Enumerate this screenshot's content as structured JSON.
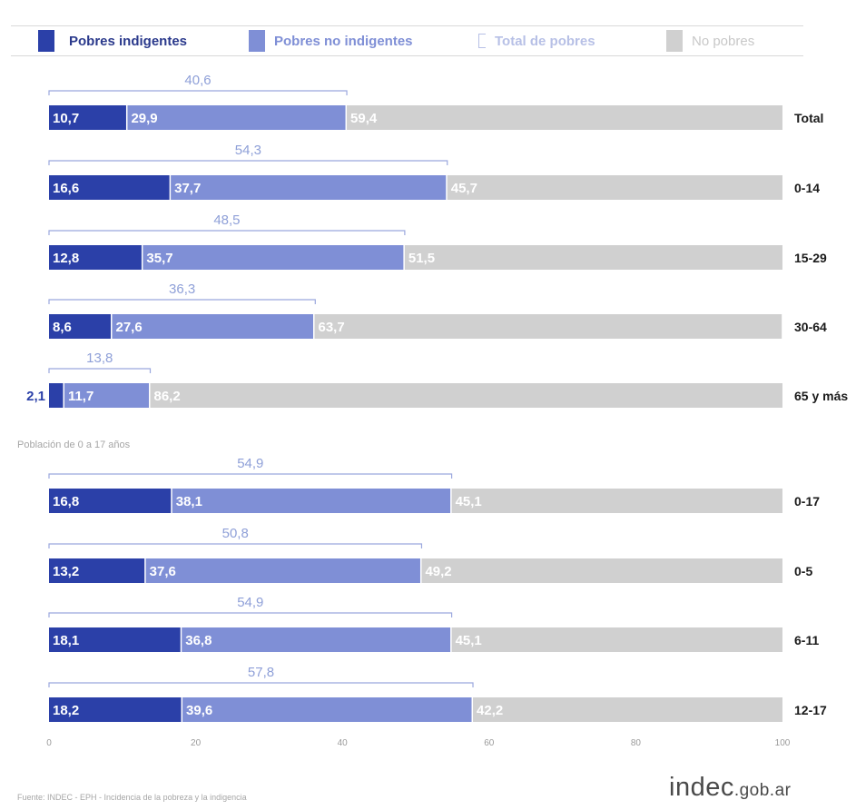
{
  "legend": {
    "indigentes": "Pobres indigentes",
    "no_indigentes": "Pobres no indigentes",
    "total": "Total de pobres",
    "no_pobres": "No pobres"
  },
  "section_note": "Población de 0 a 17 años",
  "source_note": "Fuente: INDEC - EPH - Incidencia de la pobreza y la indigencia",
  "logo": {
    "main": "indec",
    "domain": ".gob.ar"
  },
  "colors": {
    "indigentes": "#2b40a8",
    "no_indigentes": "#7f8fd6",
    "no_pobres": "#d0d0d0",
    "total_label": "#8fa0d8",
    "bracket": "#9ba8de"
  },
  "chart_data": {
    "type": "bar",
    "orientation": "horizontal",
    "stacked": true,
    "xlim": [
      0,
      100
    ],
    "xticks": [
      "0",
      "20",
      "40",
      "60",
      "80",
      "100"
    ],
    "categories": [
      "Total",
      "0-14",
      "15-29",
      "30-64",
      "65 y más",
      "0-17",
      "0-5",
      "6-11",
      "12-17"
    ],
    "series": [
      {
        "name": "Pobres indigentes",
        "values": [
          10.7,
          16.6,
          12.8,
          8.6,
          2.1,
          16.8,
          13.2,
          18.1,
          18.2
        ],
        "labels": [
          "10,7",
          "16,6",
          "12,8",
          "8,6",
          "2,1",
          "16,8",
          "13,2",
          "18,1",
          "18,2"
        ]
      },
      {
        "name": "Pobres no indigentes",
        "values": [
          29.9,
          37.7,
          35.7,
          27.6,
          11.7,
          38.1,
          37.6,
          36.8,
          39.6
        ],
        "labels": [
          "29,9",
          "37,7",
          "35,7",
          "27,6",
          "11,7",
          "38,1",
          "37,6",
          "36,8",
          "39,6"
        ]
      },
      {
        "name": "No pobres",
        "values": [
          59.4,
          45.7,
          51.5,
          63.7,
          86.2,
          45.1,
          49.2,
          45.1,
          42.2
        ],
        "labels": [
          "59,4",
          "45,7",
          "51,5",
          "63,7",
          "86,2",
          "45,1",
          "49,2",
          "45,1",
          "42,2"
        ]
      }
    ],
    "total_pobres": {
      "name": "Total de pobres",
      "values": [
        40.6,
        54.3,
        48.5,
        36.3,
        13.8,
        54.9,
        50.8,
        54.9,
        57.8
      ],
      "labels": [
        "40,6",
        "54,3",
        "48,5",
        "36,3",
        "13,8",
        "54,9",
        "50,8",
        "54,9",
        "57,8"
      ]
    },
    "legend_position": "top",
    "grid": false
  }
}
